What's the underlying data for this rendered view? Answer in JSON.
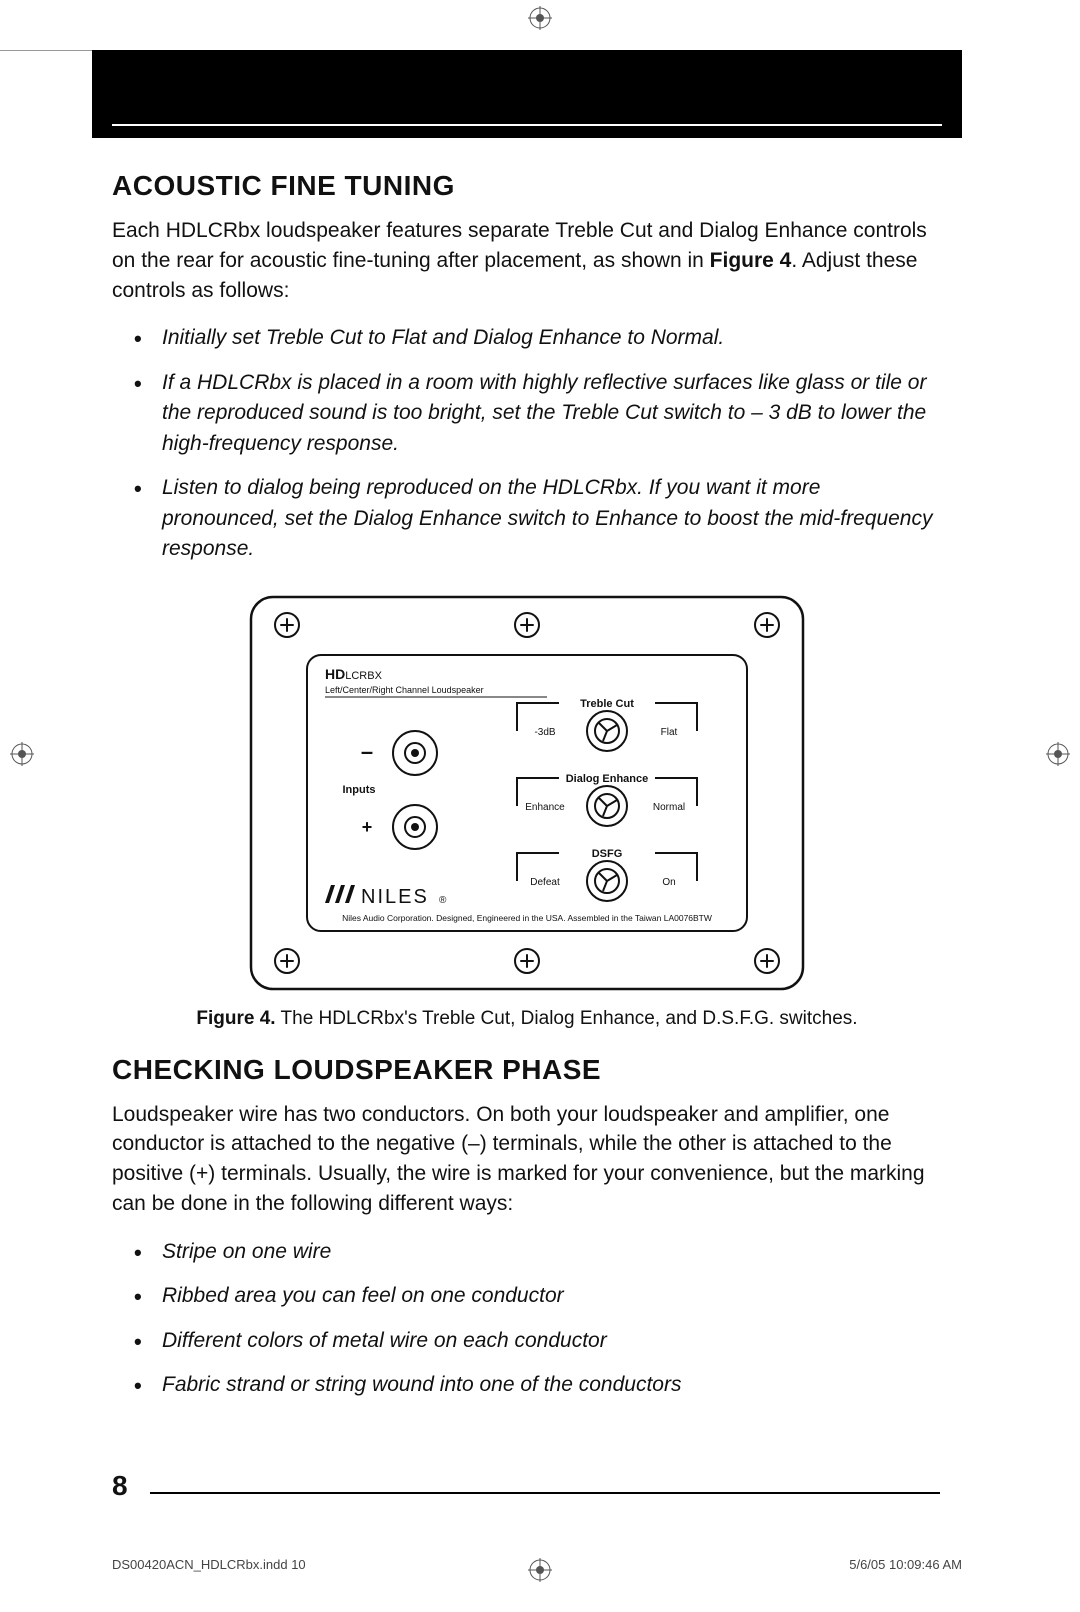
{
  "page": {
    "number": "8",
    "footer_left": "DS00420ACN_HDLCRbx.indd   10",
    "footer_right": "5/6/05   10:09:46 AM"
  },
  "section1": {
    "heading": "ACOUSTIC FINE TUNING",
    "intro_a": "Each HDLCRbx loudspeaker features separate Treble Cut and Dialog Enhance controls on the rear for acoustic fine-tuning after placement, as shown in ",
    "intro_bold": "Figure 4",
    "intro_b": ". Adjust these controls as follows:",
    "bullets": [
      "Initially set Treble Cut to Flat and Dialog Enhance to Normal.",
      "If a HDLCRbx is placed in a room with highly reflective surfaces like glass or tile or the reproduced sound is too bright, set the Treble Cut switch to – 3 dB to lower the high-frequency response.",
      "Listen to dialog being reproduced on the HDLCRbx. If you want it more pronounced, set the Dialog Enhance switch to Enhance to boost the mid-frequency response."
    ]
  },
  "figure": {
    "caption_bold": "Figure 4.",
    "caption_rest": " The HDLCRbx's Treble Cut, Dialog Enhance, and D.S.F.G. switches.",
    "panel": {
      "model_bold": "HD",
      "model_rest": "LCRBX",
      "subtitle": "Left/Center/Right Channel Loudspeaker",
      "inputs_label": "Inputs",
      "minus": "–",
      "plus": "+",
      "brand": "NILES",
      "footer": "Niles Audio Corporation. Designed, Engineered in the USA. Assembled in the Taiwan LA0076BTW",
      "switches": [
        {
          "title": "Treble Cut",
          "left": "-3dB",
          "right": "Flat"
        },
        {
          "title": "Dialog Enhance",
          "left": "Enhance",
          "right": "Normal"
        },
        {
          "title": "DSFG",
          "left": "Defeat",
          "right": "On"
        }
      ]
    },
    "colors": {
      "stroke": "#111111",
      "bg": "#ffffff"
    }
  },
  "section2": {
    "heading": "CHECKING LOUDSPEAKER PHASE",
    "intro": "Loudspeaker wire has two conductors. On both your loudspeaker and amplifier, one conductor is attached to the negative (–) terminals, while the other is attached to the positive (+) terminals. Usually, the wire is marked for your convenience, but the marking can be done in the following different ways:",
    "bullets": [
      "Stripe on one wire",
      "Ribbed area you can feel on one conductor",
      "Different colors of metal wire on each conductor",
      "Fabric strand or string wound into one of the conductors"
    ]
  }
}
